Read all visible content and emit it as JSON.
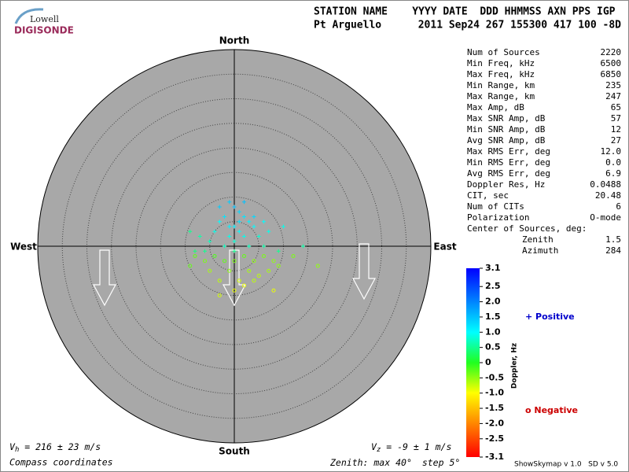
{
  "header": {
    "logo_top": "Lowell",
    "logo_bottom": "DIGISONDE",
    "columns": "STATION NAME    YYYY DATE  DDD HHMMSS AXN PPS IGP",
    "station": "Pt Arguello",
    "record": "2011 Sep24 267 155300 417 100 -8D"
  },
  "stats": [
    {
      "label": "Num of Sources",
      "value": "2220"
    },
    {
      "label": "Min Freq, kHz",
      "value": "6500"
    },
    {
      "label": "Max Freq, kHz",
      "value": "6850"
    },
    {
      "label": "Min Range, km",
      "value": "235"
    },
    {
      "label": "Max Range, km",
      "value": "247"
    },
    {
      "label": "Max Amp, dB",
      "value": "65"
    },
    {
      "label": "Max SNR Amp, dB",
      "value": "57"
    },
    {
      "label": "Min SNR Amp, dB",
      "value": "12"
    },
    {
      "label": "Avg SNR Amp, dB",
      "value": "27"
    },
    {
      "label": "Max RMS Err, deg",
      "value": "12.0"
    },
    {
      "label": "Min RMS Err, deg",
      "value": "0.0"
    },
    {
      "label": "Avg RMS Err, deg",
      "value": "6.9"
    },
    {
      "label": "Doppler Res, Hz",
      "value": "0.0488"
    },
    {
      "label": "CIT, sec",
      "value": "20.48"
    },
    {
      "label": "Num of CITs",
      "value": "6"
    },
    {
      "label": "Polarization",
      "value": "O-mode"
    }
  ],
  "center": {
    "title": "Center of Sources, deg:",
    "zenith_label": "Zenith",
    "zenith": "1.5",
    "azimuth_label": "Azimuth",
    "azimuth": "284"
  },
  "compass": {
    "north": "North",
    "south": "South",
    "east": "East",
    "west": "West"
  },
  "skymap": {
    "zenith_max": 40,
    "step": 5,
    "positive": [
      [
        -1,
        9,
        1.4
      ],
      [
        0,
        8,
        1.5
      ],
      [
        1,
        7,
        1.3
      ],
      [
        2,
        6,
        1.2
      ],
      [
        -2,
        6,
        1.2
      ],
      [
        3,
        5,
        1.1
      ],
      [
        -3,
        5,
        1.0
      ],
      [
        4,
        4,
        1.0
      ],
      [
        -4,
        3,
        0.9
      ],
      [
        0,
        4,
        1.1
      ],
      [
        1,
        3,
        1.0
      ],
      [
        -1,
        2,
        0.9
      ],
      [
        2,
        2,
        0.9
      ],
      [
        5,
        2,
        0.8
      ],
      [
        -5,
        1,
        0.7
      ],
      [
        6,
        0,
        0.6
      ],
      [
        -6,
        -1,
        0.5
      ],
      [
        3,
        0,
        0.7
      ],
      [
        -2,
        0,
        0.7
      ],
      [
        0,
        1,
        0.8
      ],
      [
        7,
        3,
        0.9
      ],
      [
        -7,
        2,
        0.6
      ],
      [
        9,
        -1,
        0.5
      ],
      [
        14,
        0,
        0.6
      ],
      [
        -8,
        -1,
        0.4
      ],
      [
        1,
        5,
        1.2
      ],
      [
        -1,
        4,
        1.1
      ],
      [
        4,
        6,
        1.3
      ],
      [
        -3,
        8,
        1.4
      ],
      [
        2,
        9,
        1.5
      ],
      [
        10,
        4,
        0.9
      ],
      [
        6,
        5,
        1.0
      ],
      [
        -9,
        3,
        0.5
      ],
      [
        0,
        -1,
        0.5
      ]
    ],
    "negative": [
      [
        -8,
        -2,
        -0.3
      ],
      [
        -6,
        -3,
        -0.4
      ],
      [
        -4,
        -2,
        -0.2
      ],
      [
        -2,
        -3,
        -0.3
      ],
      [
        0,
        -3,
        -0.4
      ],
      [
        2,
        -2,
        -0.3
      ],
      [
        4,
        -3,
        -0.5
      ],
      [
        6,
        -2,
        -0.4
      ],
      [
        8,
        -3,
        -0.5
      ],
      [
        -5,
        -5,
        -0.6
      ],
      [
        -1,
        -5,
        -0.5
      ],
      [
        3,
        -5,
        -0.6
      ],
      [
        5,
        -6,
        -0.7
      ],
      [
        1,
        -7,
        -0.8
      ],
      [
        -3,
        -7,
        -0.7
      ],
      [
        2,
        -8,
        -0.9
      ],
      [
        7,
        -5,
        -0.6
      ],
      [
        9,
        -4,
        -0.5
      ],
      [
        -9,
        -4,
        -0.3
      ],
      [
        0,
        -9,
        -0.9
      ],
      [
        8,
        -9,
        -0.9
      ],
      [
        12,
        -2,
        -0.4
      ],
      [
        17,
        -4,
        -0.5
      ],
      [
        -3,
        -10,
        -0.8
      ],
      [
        4,
        -7,
        -0.7
      ]
    ]
  },
  "colorbar": {
    "label": "Doppler, Hz",
    "range": [
      -3.1,
      3.1
    ],
    "ticks": [
      3.1,
      2.5,
      {
        "value": 2,
        "label": "2.0"
      },
      1.5,
      {
        "value": 1,
        "label": "1.0"
      },
      0.5,
      0,
      -0.5,
      {
        "value": -1,
        "label": "-1.0"
      },
      -1.5,
      {
        "value": -2,
        "label": "-2.0"
      },
      -2.5,
      -3.1
    ]
  },
  "legend": {
    "positive": "+ Positive",
    "negative": "o Negative"
  },
  "footer": {
    "vh_symbol": "V",
    "vh_sub": "h",
    "vh": " = 216 ± 23 m/s",
    "vz_symbol": "V",
    "vz_sub": "z",
    "vz": " = -9 ± 1 m/s",
    "coords": "Compass coordinates",
    "zenith_prefix": "Zenith: max",
    "zenith_max_label": "40°",
    "zenith_step_label": "step 5°",
    "version": "ShowSkymap v 1.0   SD v 5.0"
  }
}
